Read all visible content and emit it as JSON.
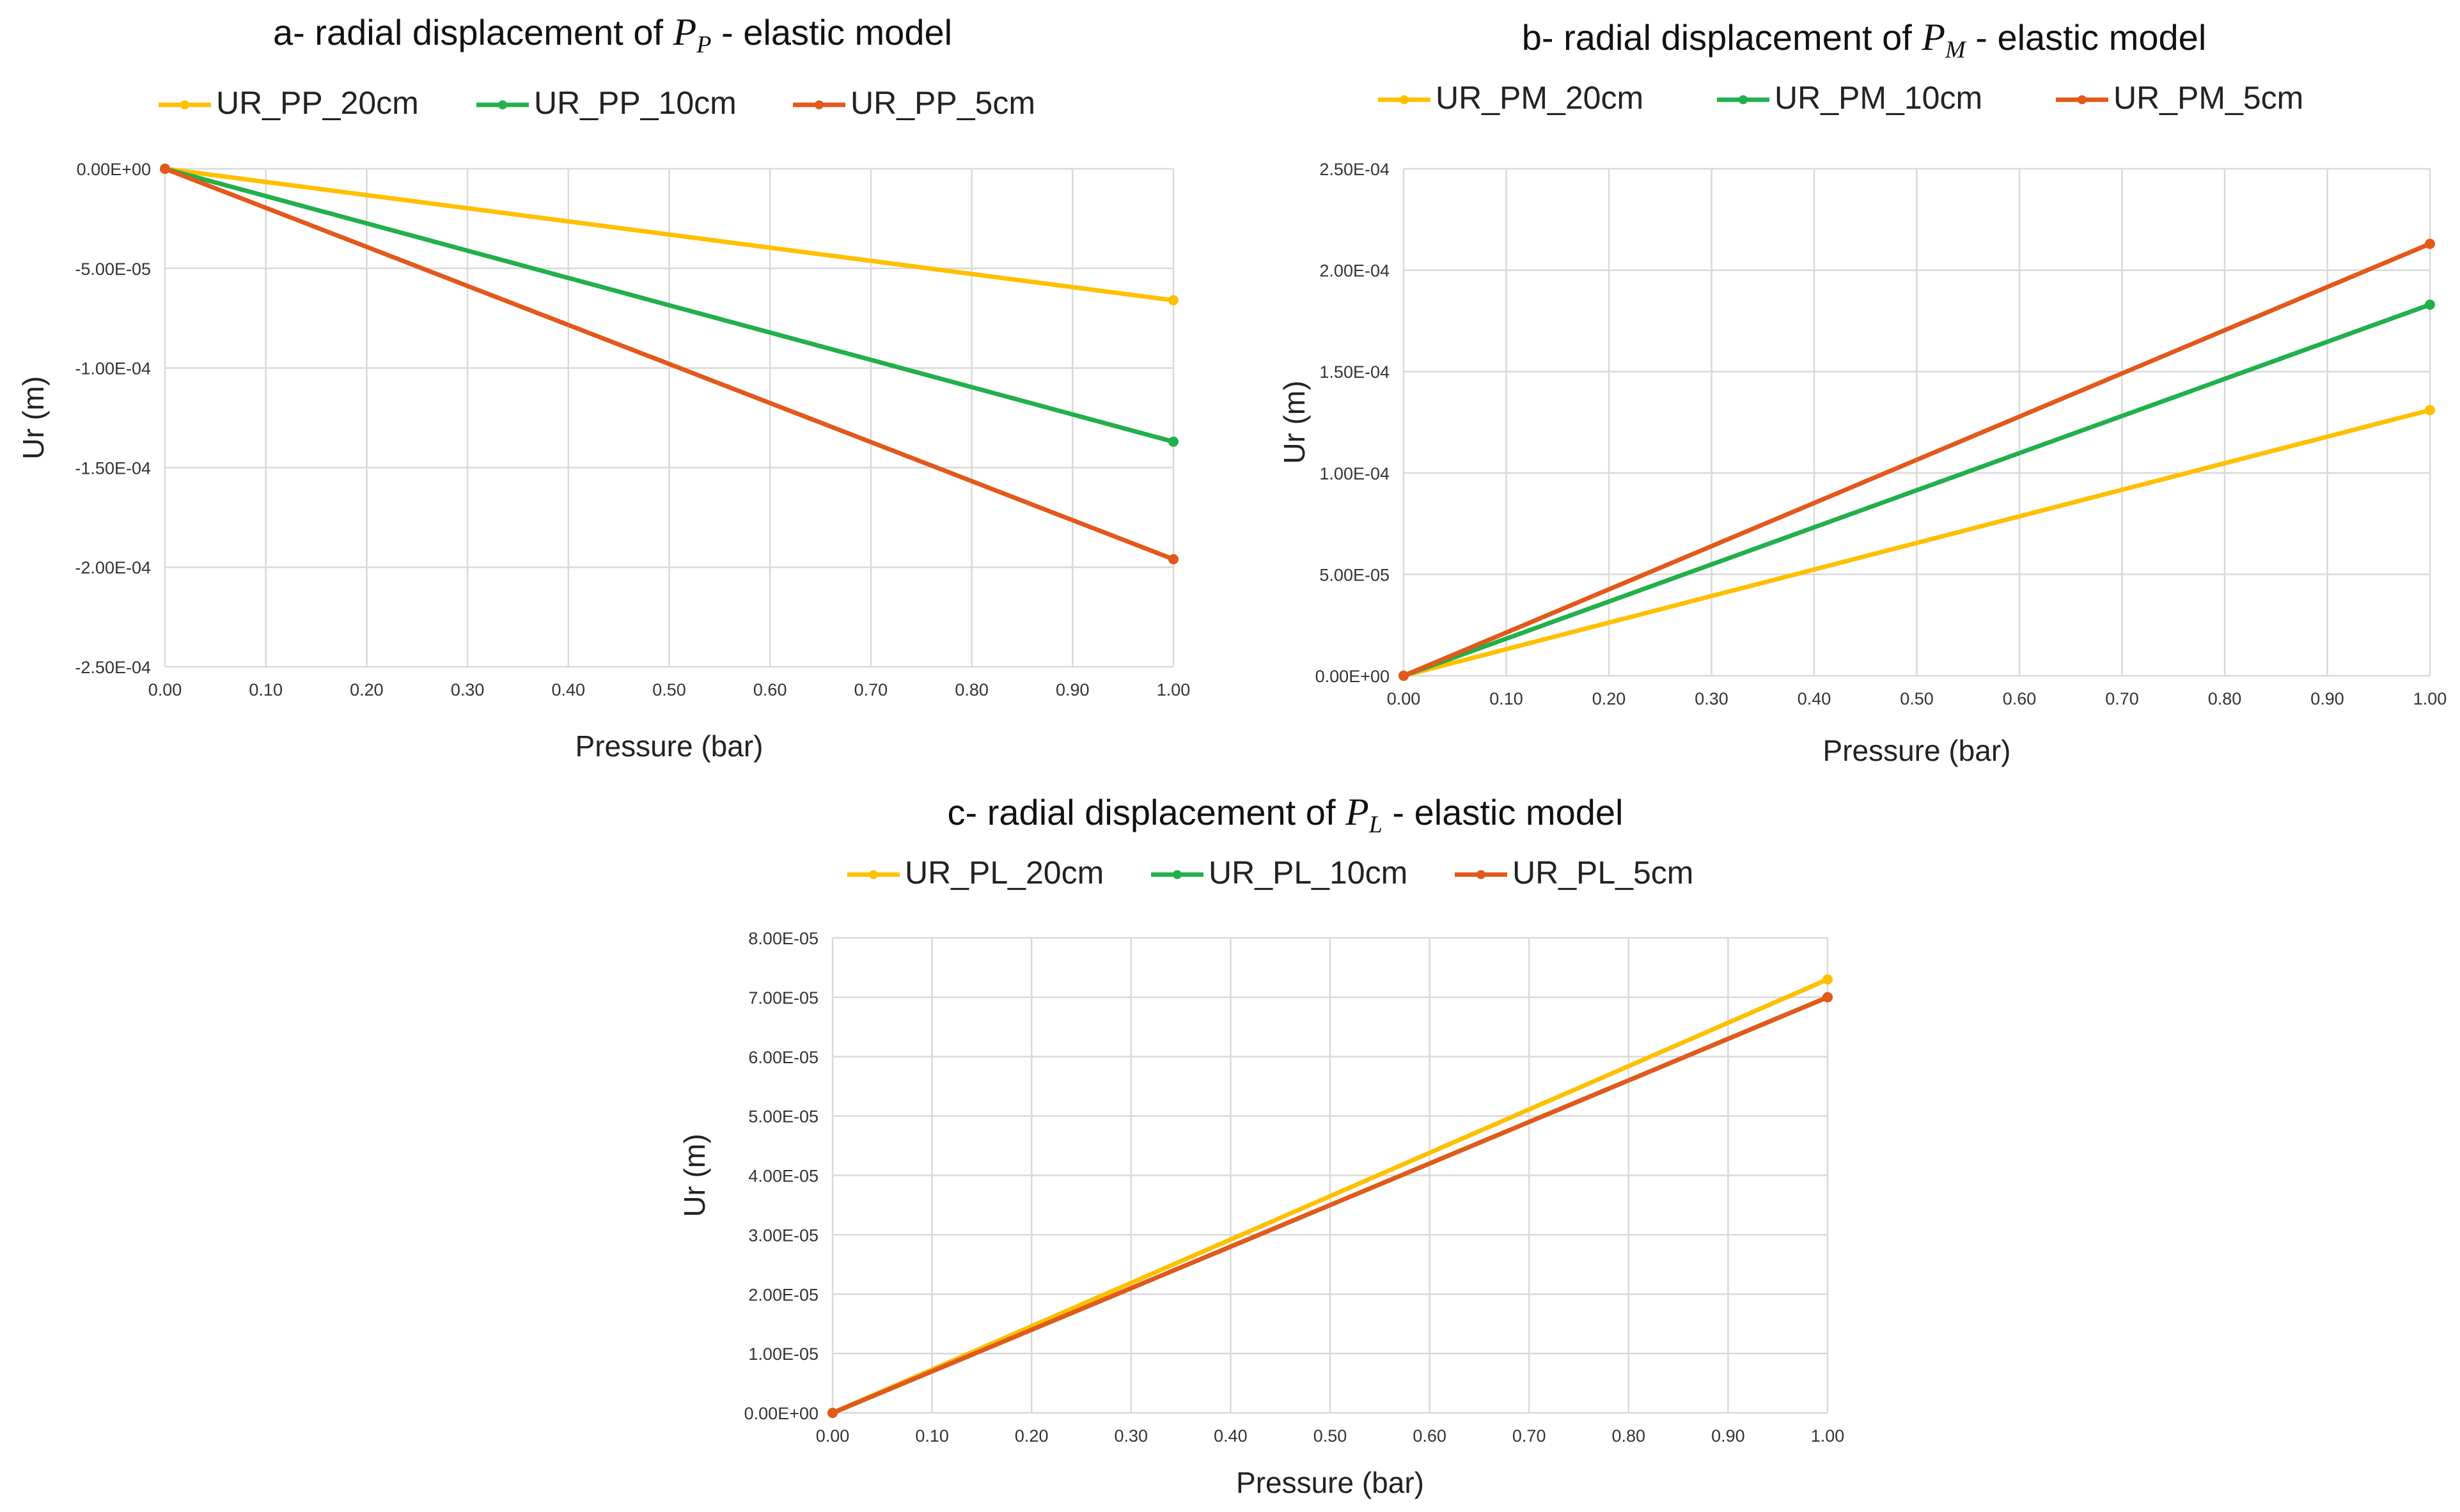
{
  "chart_data": [
    {
      "id": "a",
      "type": "line",
      "title_prefix": "a- radial displacement of ",
      "title_symbol": "P",
      "title_subscript": "P",
      "title_suffix": " - elastic model",
      "xlabel": "Pressure (bar)",
      "ylabel": "Ur (m)",
      "xlim": [
        0,
        1
      ],
      "ylim": [
        -0.00025,
        0
      ],
      "x_ticks": [
        "0.00",
        "0.10",
        "0.20",
        "0.30",
        "0.40",
        "0.50",
        "0.60",
        "0.70",
        "0.80",
        "0.90",
        "1.00"
      ],
      "y_ticks": [
        "0.00E+00",
        "-5.00E-05",
        "-1.00E-04",
        "-1.50E-04",
        "-2.00E-04",
        "-2.50E-04"
      ],
      "y_tick_values": [
        0,
        -5e-05,
        -0.0001,
        -0.00015,
        -0.0002,
        -0.00025
      ],
      "series": [
        {
          "name": "UR_PP_20cm",
          "color": "#FFC000",
          "x": [
            0,
            1
          ],
          "values": [
            0,
            -6.6e-05
          ]
        },
        {
          "name": "UR_PP_10cm",
          "color": "#21B04B",
          "x": [
            0,
            1
          ],
          "values": [
            0,
            -0.000137
          ]
        },
        {
          "name": "UR_PP_5cm",
          "color": "#E2591B",
          "x": [
            0,
            1
          ],
          "values": [
            0,
            -0.000196
          ]
        }
      ]
    },
    {
      "id": "b",
      "type": "line",
      "title_prefix": "b- radial displacement of ",
      "title_symbol": "P",
      "title_subscript": "M",
      "title_suffix": " - elastic model",
      "xlabel": "Pressure (bar)",
      "ylabel": "Ur (m)",
      "xlim": [
        0,
        1
      ],
      "ylim": [
        0,
        0.00025
      ],
      "x_ticks": [
        "0.00",
        "0.10",
        "0.20",
        "0.30",
        "0.40",
        "0.50",
        "0.60",
        "0.70",
        "0.80",
        "0.90",
        "1.00"
      ],
      "y_ticks": [
        "2.50E-04",
        "2.00E-04",
        "1.50E-04",
        "1.00E-04",
        "5.00E-05",
        "0.00E+00"
      ],
      "y_tick_values": [
        0.00025,
        0.0002,
        0.00015,
        0.0001,
        5e-05,
        0
      ],
      "series": [
        {
          "name": "UR_PM_20cm",
          "color": "#FFC000",
          "x": [
            0,
            1
          ],
          "values": [
            0,
            0.000131
          ]
        },
        {
          "name": "UR_PM_10cm",
          "color": "#21B04B",
          "x": [
            0,
            1
          ],
          "values": [
            0,
            0.000183
          ]
        },
        {
          "name": "UR_PM_5cm",
          "color": "#E2591B",
          "x": [
            0,
            1
          ],
          "values": [
            0,
            0.000213
          ]
        }
      ]
    },
    {
      "id": "c",
      "type": "line",
      "title_prefix": "c- radial displacement of ",
      "title_symbol": "P",
      "title_subscript": "L",
      "title_suffix": " - elastic model",
      "xlabel": "Pressure (bar)",
      "ylabel": "Ur (m)",
      "xlim": [
        0,
        1
      ],
      "ylim": [
        0,
        8e-05
      ],
      "x_ticks": [
        "0.00",
        "0.10",
        "0.20",
        "0.30",
        "0.40",
        "0.50",
        "0.60",
        "0.70",
        "0.80",
        "0.90",
        "1.00"
      ],
      "y_ticks": [
        "8.00E-05",
        "7.00E-05",
        "6.00E-05",
        "5.00E-05",
        "4.00E-05",
        "3.00E-05",
        "2.00E-05",
        "1.00E-05",
        "0.00E+00"
      ],
      "y_tick_values": [
        8e-05,
        7e-05,
        6e-05,
        5e-05,
        4e-05,
        3e-05,
        2e-05,
        1e-05,
        0
      ],
      "series": [
        {
          "name": "UR_PL_20cm",
          "color": "#FFC000",
          "x": [
            0,
            1
          ],
          "values": [
            0,
            7.3e-05
          ]
        },
        {
          "name": "UR_PL_10cm",
          "color": "#21B04B",
          "x": [
            0,
            1
          ],
          "values": [
            0,
            7e-05
          ]
        },
        {
          "name": "UR_PL_5cm",
          "color": "#E2591B",
          "x": [
            0,
            1
          ],
          "values": [
            0,
            7e-05
          ]
        }
      ]
    }
  ]
}
